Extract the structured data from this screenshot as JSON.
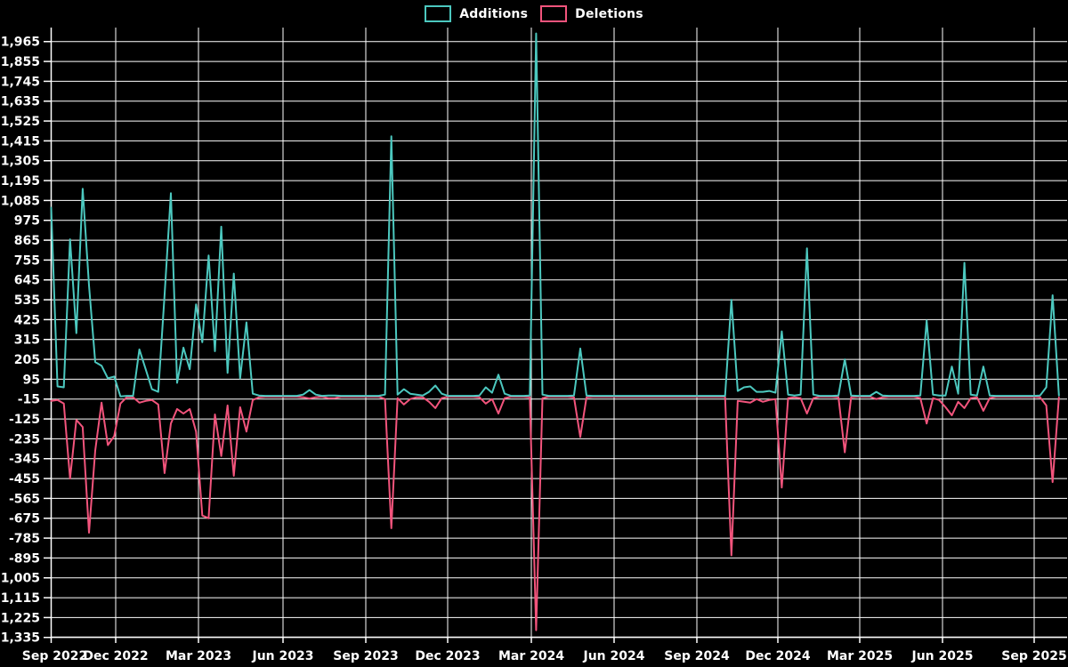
{
  "chart_data": {
    "type": "line",
    "title": "",
    "legend_position": "top-center",
    "background_color": "#000000",
    "grid_color": "#ffffff",
    "axis_color": "#ffffff",
    "grid": true,
    "x_axis": {
      "tick_labels": [
        "Sep 2022",
        "Dec 2022",
        "Mar 2023",
        "Jun 2023",
        "Sep 2023",
        "Dec 2023",
        "Mar 2024",
        "Jun 2024",
        "Sep 2024",
        "Dec 2024",
        "Mar 2025",
        "Jun 2025",
        "Sep 2025"
      ]
    },
    "y_axis": {
      "min": -1335,
      "max": 1965,
      "step": 110,
      "tick_values": [
        1965,
        1855,
        1745,
        1635,
        1525,
        1415,
        1305,
        1195,
        1085,
        975,
        865,
        755,
        645,
        535,
        425,
        315,
        205,
        95,
        -15,
        -125,
        -235,
        -345,
        -455,
        -565,
        -675,
        -785,
        -895,
        -1005,
        -1115,
        -1225,
        -1335
      ]
    },
    "series": [
      {
        "name": "Additions",
        "color": "#4cc8bf",
        "values": [
          1045,
          55,
          50,
          870,
          350,
          1150,
          615,
          190,
          170,
          100,
          110,
          0,
          3,
          3,
          260,
          150,
          40,
          25,
          560,
          1125,
          75,
          270,
          150,
          510,
          300,
          780,
          250,
          940,
          130,
          680,
          100,
          410,
          15,
          5,
          3,
          3,
          3,
          3,
          3,
          3,
          10,
          35,
          10,
          3,
          5,
          5,
          3,
          3,
          3,
          3,
          3,
          3,
          3,
          10,
          1440,
          10,
          40,
          15,
          10,
          5,
          25,
          60,
          15,
          3,
          3,
          3,
          3,
          3,
          5,
          50,
          20,
          120,
          15,
          3,
          3,
          3,
          5,
          2010,
          10,
          3,
          3,
          3,
          3,
          5,
          265,
          5,
          3,
          3,
          3,
          3,
          3,
          3,
          3,
          3,
          3,
          3,
          3,
          3,
          3,
          3,
          3,
          3,
          3,
          3,
          3,
          3,
          3,
          3,
          535,
          30,
          50,
          55,
          25,
          25,
          30,
          20,
          360,
          10,
          5,
          10,
          820,
          10,
          3,
          3,
          3,
          5,
          205,
          5,
          3,
          3,
          3,
          25,
          5,
          3,
          3,
          3,
          3,
          3,
          5,
          420,
          10,
          5,
          5,
          165,
          15,
          740,
          10,
          5,
          165,
          5,
          3,
          3,
          3,
          3,
          3,
          3,
          3,
          5,
          50,
          560,
          5
        ]
      },
      {
        "name": "Deletions",
        "color": "#f2547c",
        "values": [
          -25,
          -20,
          -40,
          -455,
          -130,
          -170,
          -755,
          -300,
          -35,
          -270,
          -220,
          -40,
          -5,
          -5,
          -35,
          -25,
          -20,
          -45,
          -425,
          -150,
          -70,
          -95,
          -70,
          -195,
          -660,
          -675,
          -100,
          -330,
          -50,
          -440,
          -60,
          -195,
          -20,
          -5,
          -2,
          -2,
          -2,
          -2,
          -2,
          -2,
          -5,
          -12,
          -5,
          -2,
          -10,
          -10,
          -2,
          -2,
          -2,
          -2,
          -2,
          -2,
          -2,
          -15,
          -730,
          -10,
          -45,
          -15,
          -5,
          -5,
          -30,
          -65,
          -10,
          -2,
          -2,
          -2,
          -2,
          -2,
          -5,
          -40,
          -15,
          -95,
          -10,
          -2,
          -2,
          -2,
          -5,
          -1295,
          -10,
          -2,
          -2,
          -2,
          -2,
          -5,
          -225,
          -5,
          -2,
          -2,
          -2,
          -2,
          -2,
          -2,
          -2,
          -2,
          -2,
          -2,
          -2,
          -2,
          -2,
          -2,
          -2,
          -2,
          -2,
          -2,
          -2,
          -2,
          -2,
          -2,
          -880,
          -25,
          -30,
          -35,
          -15,
          -30,
          -20,
          -15,
          -505,
          -10,
          -5,
          -10,
          -95,
          -10,
          -2,
          -2,
          -2,
          -5,
          -310,
          -5,
          -2,
          -2,
          -2,
          -15,
          -5,
          -2,
          -2,
          -2,
          -2,
          -2,
          -10,
          -150,
          -10,
          -20,
          -60,
          -105,
          -30,
          -65,
          -10,
          -5,
          -80,
          -10,
          -2,
          -2,
          -2,
          -2,
          -2,
          -2,
          -2,
          -5,
          -50,
          -475,
          -5
        ]
      }
    ]
  }
}
